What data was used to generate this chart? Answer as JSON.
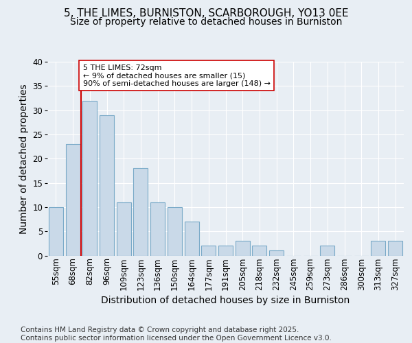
{
  "title_line1": "5, THE LIMES, BURNISTON, SCARBOROUGH, YO13 0EE",
  "title_line2": "Size of property relative to detached houses in Burniston",
  "xlabel": "Distribution of detached houses by size in Burniston",
  "ylabel": "Number of detached properties",
  "footnote": "Contains HM Land Registry data © Crown copyright and database right 2025.\nContains public sector information licensed under the Open Government Licence v3.0.",
  "categories": [
    "55sqm",
    "68sqm",
    "82sqm",
    "96sqm",
    "109sqm",
    "123sqm",
    "136sqm",
    "150sqm",
    "164sqm",
    "177sqm",
    "191sqm",
    "205sqm",
    "218sqm",
    "232sqm",
    "245sqm",
    "259sqm",
    "273sqm",
    "286sqm",
    "300sqm",
    "313sqm",
    "327sqm"
  ],
  "values": [
    10,
    23,
    32,
    29,
    11,
    18,
    11,
    10,
    7,
    2,
    2,
    3,
    2,
    1,
    0,
    0,
    2,
    0,
    0,
    3,
    3
  ],
  "bar_color": "#c9d9e8",
  "bar_edge_color": "#7aaac8",
  "annotation_text": "5 THE LIMES: 72sqm\n← 9% of detached houses are smaller (15)\n90% of semi-detached houses are larger (148) →",
  "vline_x": 1.5,
  "vline_color": "#cc0000",
  "annotation_box_color": "#ffffff",
  "annotation_box_edge": "#cc0000",
  "ylim": [
    0,
    40
  ],
  "yticks": [
    0,
    5,
    10,
    15,
    20,
    25,
    30,
    35,
    40
  ],
  "background_color": "#e8eef4",
  "plot_background": "#e8eef4",
  "grid_color": "#ffffff",
  "title_fontsize": 11,
  "subtitle_fontsize": 10,
  "axis_label_fontsize": 10,
  "tick_fontsize": 8.5,
  "footnote_fontsize": 7.5
}
